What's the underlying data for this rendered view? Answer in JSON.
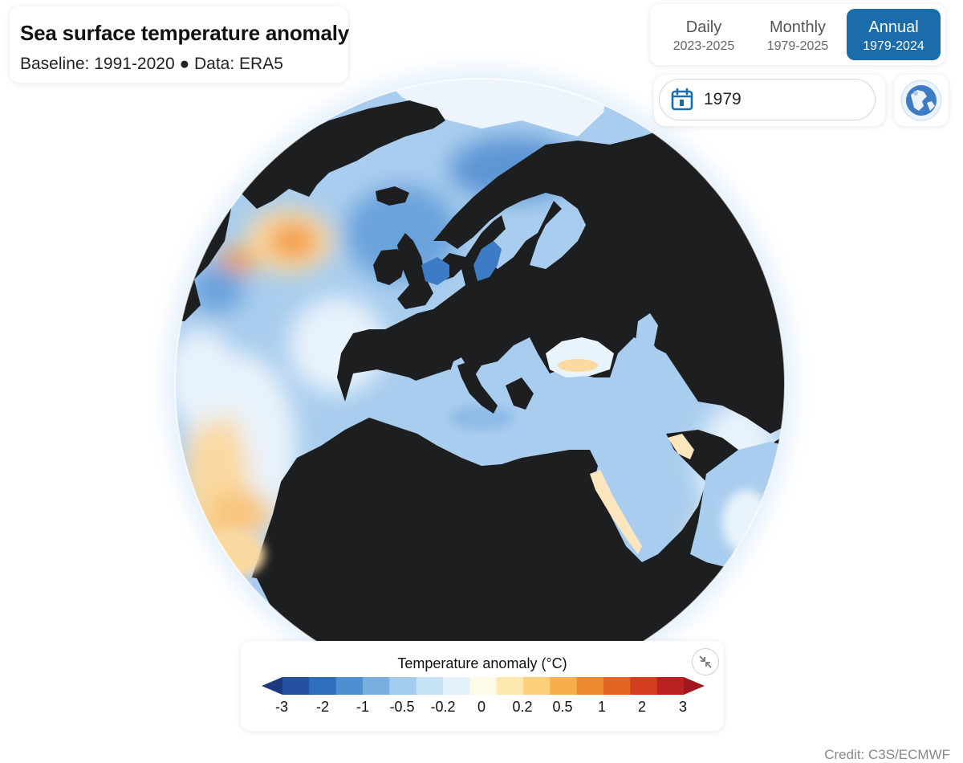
{
  "header": {
    "title": "Sea surface temperature anomaly",
    "subtitle": "Baseline: 1991-2020 ● Data: ERA5"
  },
  "modes": [
    {
      "label": "Daily",
      "range": "2023-2025",
      "active": false
    },
    {
      "label": "Monthly",
      "range": "1979-2025",
      "active": false
    },
    {
      "label": "Annual",
      "range": "1979-2024",
      "active": true
    }
  ],
  "date_picker": {
    "value": "1979",
    "icon": "calendar-icon"
  },
  "view_toggle": {
    "icon": "globe-view-icon"
  },
  "legend": {
    "title": "Temperature anomaly (°C)",
    "tick_labels": [
      "-3",
      "-2",
      "-1",
      "-0.5",
      "-0.2",
      "0",
      "0.2",
      "0.5",
      "1",
      "2",
      "3"
    ],
    "colors": [
      "#1b3a80",
      "#2552a0",
      "#2f6dbd",
      "#4f8fd1",
      "#78afe0",
      "#a3cdee",
      "#c5e2f6",
      "#e2f1fb",
      "#fdfbe8",
      "#fde9b0",
      "#fbd07a",
      "#f7ae4c",
      "#ef8a31",
      "#e46424",
      "#d43e1e",
      "#bb2121",
      "#a0171c"
    ],
    "collapse_icon": "collapse-arrows-icon"
  },
  "map": {
    "projection": "orthographic globe",
    "land_color": "#1d1e20",
    "palette": {
      "ice": "#eef4fb",
      "strong_cold": "#3d7bc4",
      "cold": "#6aa3dc",
      "cool": "#a9cdee",
      "neutral": "#e9f3fb",
      "warm": "#fbd9a0",
      "hot": "#f39a3c"
    }
  },
  "credit": "Credit: C3S/ECMWF"
}
